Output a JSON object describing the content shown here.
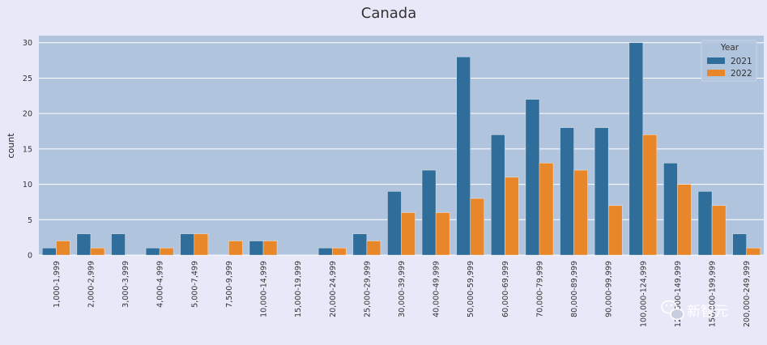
{
  "chart_data": {
    "type": "bar",
    "title": "Canada",
    "xlabel": "",
    "ylabel": "count",
    "ylim": [
      0,
      31
    ],
    "yticks": [
      0,
      5,
      10,
      15,
      20,
      25,
      30
    ],
    "grid": true,
    "legend": {
      "title": "Year",
      "placement": "top-right"
    },
    "categories": [
      "1,000-1,999",
      "2,000-2,999",
      "3,000-3,999",
      "4,000-4,999",
      "5,000-7,499",
      "7,500-9,999",
      "10,000-14,999",
      "15,000-19,999",
      "20,000-24,999",
      "25,000-29,999",
      "30,000-39,999",
      "40,000-49,999",
      "50,000-59,999",
      "60,000-69,999",
      "70,000-79,999",
      "80,000-89,999",
      "90,000-99,999",
      "100,000-124,999",
      "125,000-149,999",
      "150,000-199,999",
      "200,000-249,999"
    ],
    "series": [
      {
        "name": "2021",
        "color": "#2f6d9b",
        "values": [
          1,
          3,
          3,
          1,
          3,
          0,
          2,
          0,
          1,
          3,
          9,
          12,
          28,
          17,
          22,
          18,
          18,
          30,
          13,
          9,
          3
        ]
      },
      {
        "name": "2022",
        "color": "#e8872a",
        "values": [
          2,
          1,
          0,
          1,
          3,
          2,
          2,
          0,
          1,
          2,
          6,
          6,
          8,
          11,
          13,
          12,
          7,
          17,
          10,
          7,
          1
        ]
      }
    ]
  },
  "watermark": {
    "text": "新智元",
    "icon": "wechat-logo-icon"
  },
  "colors": {
    "page_bg": "#e8e8f8",
    "plot_bg": "#b0c4de",
    "grid": "#ffffff"
  }
}
